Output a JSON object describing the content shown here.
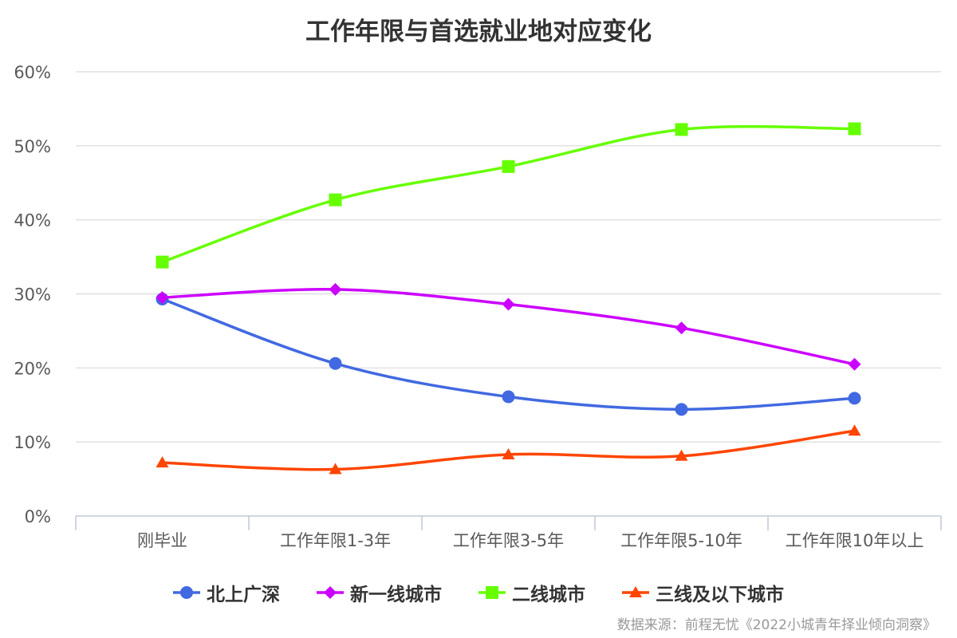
{
  "chart_data": {
    "type": "line",
    "title": "工作年限与首选就业地对应变化",
    "categories": [
      "刚毕业",
      "工作年限1-3年",
      "工作年限3-5年",
      "工作年限5-10年",
      "工作年限10年以上"
    ],
    "ylim": [
      0,
      60
    ],
    "yticks": [
      "0%",
      "10%",
      "20%",
      "30%",
      "40%",
      "50%",
      "60%"
    ],
    "ytick_values": [
      0,
      10,
      20,
      30,
      40,
      50,
      60
    ],
    "grid": true,
    "legend_position": "bottom",
    "series": [
      {
        "name": "北上广深",
        "values": [
          29.3,
          20.6,
          16.1,
          14.4,
          15.9
        ],
        "color": "#4169E1",
        "marker": "circle"
      },
      {
        "name": "新一线城市",
        "values": [
          29.5,
          30.6,
          28.6,
          25.4,
          20.5
        ],
        "color": "#CC00FF",
        "marker": "diamond"
      },
      {
        "name": "二线城市",
        "values": [
          34.3,
          42.7,
          47.2,
          52.2,
          52.3
        ],
        "color": "#66FF00",
        "marker": "square"
      },
      {
        "name": "三线及以下城市",
        "values": [
          7.2,
          6.3,
          8.3,
          8.1,
          11.5
        ],
        "color": "#FF4500",
        "marker": "triangle"
      }
    ],
    "source": "数据来源：前程无忧《2022小城青年择业倾向洞察》"
  }
}
